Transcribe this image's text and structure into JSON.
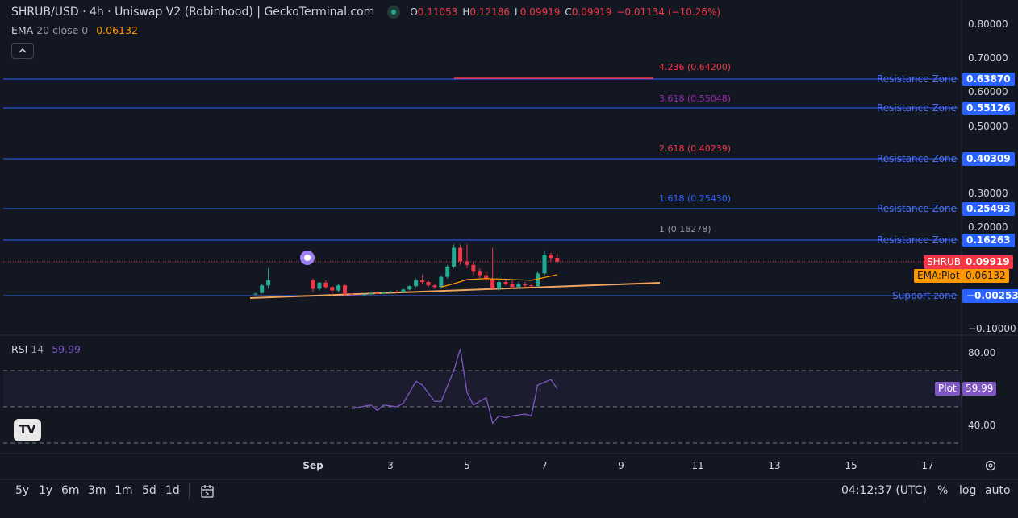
{
  "header": {
    "title": "SHRUB/USD · 4h · Uniswap V2 (Robinhood) | GeckoTerminal.com",
    "ohlc": {
      "o_label": "O",
      "o": "0.11053",
      "h_label": "H",
      "h": "0.12186",
      "l_label": "L",
      "l": "0.09919",
      "c_label": "C",
      "c": "0.09919"
    },
    "change": "−0.01134 (−10.26%)"
  },
  "ema": {
    "name": "EMA",
    "params": "20 close 0",
    "value": "0.06132"
  },
  "rsi": {
    "name": "RSI",
    "params": "14",
    "value": "59.99"
  },
  "colors": {
    "background": "#131722",
    "up": "#22ab94",
    "down": "#f23645",
    "zone": "#2962ff",
    "ema": "#ff9800",
    "trend": "#f0a35e",
    "rsi": "#7e57c2"
  },
  "price_scale": [
    "0.80000",
    "0.70000",
    "0.60000",
    "0.50000",
    "0.30000",
    "0.20000",
    "−0.10000"
  ],
  "rsi_scale": [
    "80.00",
    "40.00"
  ],
  "zones": [
    {
      "label": "Resistance Zone",
      "value": "0.63870"
    },
    {
      "label": "Resistance Zone",
      "value": "0.55126"
    },
    {
      "label": "Resistance Zone",
      "value": "0.40309"
    },
    {
      "label": "Resistance Zone",
      "value": "0.25493"
    },
    {
      "label": "Resistance Zone",
      "value": "0.16263"
    },
    {
      "label": "Support zone",
      "value": "−0.00253"
    }
  ],
  "fib_levels": [
    {
      "label": "4.236 (0.64200)",
      "color": "#f23645"
    },
    {
      "label": "3.618 (0.55048)",
      "color": "#9c27b0"
    },
    {
      "label": "2.618 (0.40239)",
      "color": "#f23645"
    },
    {
      "label": "1.618 (0.25430)",
      "color": "#2962ff"
    },
    {
      "label": "1 (0.16278)",
      "color": "#9598a1"
    }
  ],
  "price_tags": {
    "symbol_label": "SHRUB",
    "symbol_value": "0.09919",
    "ema_label": "EMA:Plot",
    "ema_value": "0.06132",
    "rsi_label": "Plot",
    "rsi_value": "59.99"
  },
  "date_axis": [
    "Sep",
    "3",
    "5",
    "7",
    "9",
    "11",
    "13",
    "15",
    "17"
  ],
  "timeframes": [
    "5y",
    "1y",
    "6m",
    "3m",
    "1m",
    "5d",
    "1d"
  ],
  "clock": "04:12:37 (UTC)",
  "scale_options": [
    "%",
    "log",
    "auto"
  ],
  "logo_text": "TV",
  "chart_data": {
    "type": "candlestick",
    "title": "SHRUB/USD · 4h · Uniswap V2 (Robinhood)",
    "candles": [
      {
        "t": "Aug 31 12:00",
        "o": 0.004,
        "h": 0.008,
        "l": 0.002,
        "c": 0.006
      },
      {
        "t": "Aug 31 16:00",
        "o": 0.008,
        "h": 0.035,
        "l": 0.006,
        "c": 0.03
      },
      {
        "t": "Aug 31 20:00",
        "o": 0.03,
        "h": 0.08,
        "l": 0.02,
        "c": 0.045
      },
      {
        "t": "Sep 1 00:00",
        "o": 0.045,
        "h": 0.05,
        "l": 0.01,
        "c": 0.02
      },
      {
        "t": "Sep 1 04:00",
        "o": 0.02,
        "h": 0.04,
        "l": 0.015,
        "c": 0.038
      },
      {
        "t": "Sep 1 08:00",
        "o": 0.038,
        "h": 0.045,
        "l": 0.02,
        "c": 0.025
      },
      {
        "t": "Sep 1 12:00",
        "o": 0.025,
        "h": 0.03,
        "l": 0.005,
        "c": 0.015
      },
      {
        "t": "Sep 1 16:00",
        "o": 0.015,
        "h": 0.035,
        "l": 0.01,
        "c": 0.03
      },
      {
        "t": "Sep 1 20:00",
        "o": 0.03,
        "h": 0.032,
        "l": 0.002,
        "c": 0.004
      },
      {
        "t": "Sep 2 00:00",
        "o": 0.004,
        "h": 0.006,
        "l": 0.0,
        "c": 0.003
      },
      {
        "t": "Sep 2 08:00",
        "o": 0.003,
        "h": 0.005,
        "l": 0.001,
        "c": 0.004
      },
      {
        "t": "Sep 2 12:00",
        "o": 0.004,
        "h": 0.008,
        "l": 0.002,
        "c": 0.007
      },
      {
        "t": "Sep 2 16:00",
        "o": 0.007,
        "h": 0.012,
        "l": 0.005,
        "c": 0.006
      },
      {
        "t": "Sep 2 20:00",
        "o": 0.006,
        "h": 0.01,
        "l": 0.004,
        "c": 0.009
      },
      {
        "t": "Sep 3 00:00",
        "o": 0.009,
        "h": 0.015,
        "l": 0.007,
        "c": 0.012
      },
      {
        "t": "Sep 3 04:00",
        "o": 0.012,
        "h": 0.016,
        "l": 0.008,
        "c": 0.01
      },
      {
        "t": "Sep 3 08:00",
        "o": 0.01,
        "h": 0.02,
        "l": 0.009,
        "c": 0.018
      },
      {
        "t": "Sep 3 12:00",
        "o": 0.018,
        "h": 0.03,
        "l": 0.015,
        "c": 0.028
      },
      {
        "t": "Sep 3 16:00",
        "o": 0.028,
        "h": 0.05,
        "l": 0.025,
        "c": 0.045
      },
      {
        "t": "Sep 3 20:00",
        "o": 0.045,
        "h": 0.06,
        "l": 0.035,
        "c": 0.04
      },
      {
        "t": "Sep 4 00:00",
        "o": 0.04,
        "h": 0.045,
        "l": 0.025,
        "c": 0.03
      },
      {
        "t": "Sep 4 04:00",
        "o": 0.03,
        "h": 0.035,
        "l": 0.02,
        "c": 0.025
      },
      {
        "t": "Sep 4 08:00",
        "o": 0.025,
        "h": 0.06,
        "l": 0.02,
        "c": 0.055
      },
      {
        "t": "Sep 4 12:00",
        "o": 0.055,
        "h": 0.09,
        "l": 0.05,
        "c": 0.085
      },
      {
        "t": "Sep 4 16:00",
        "o": 0.085,
        "h": 0.15,
        "l": 0.08,
        "c": 0.14
      },
      {
        "t": "Sep 4 20:00",
        "o": 0.14,
        "h": 0.15,
        "l": 0.09,
        "c": 0.1
      },
      {
        "t": "Sep 5 00:00",
        "o": 0.1,
        "h": 0.15,
        "l": 0.08,
        "c": 0.09
      },
      {
        "t": "Sep 5 04:00",
        "o": 0.09,
        "h": 0.1,
        "l": 0.06,
        "c": 0.07
      },
      {
        "t": "Sep 5 08:00",
        "o": 0.07,
        "h": 0.08,
        "l": 0.05,
        "c": 0.06
      },
      {
        "t": "Sep 5 12:00",
        "o": 0.06,
        "h": 0.07,
        "l": 0.04,
        "c": 0.05
      },
      {
        "t": "Sep 5 16:00",
        "o": 0.05,
        "h": 0.14,
        "l": 0.02,
        "c": 0.02
      },
      {
        "t": "Sep 5 20:00",
        "o": 0.02,
        "h": 0.06,
        "l": 0.015,
        "c": 0.04
      },
      {
        "t": "Sep 6 00:00",
        "o": 0.04,
        "h": 0.05,
        "l": 0.03,
        "c": 0.035
      },
      {
        "t": "Sep 6 04:00",
        "o": 0.035,
        "h": 0.045,
        "l": 0.02,
        "c": 0.025
      },
      {
        "t": "Sep 6 08:00",
        "o": 0.025,
        "h": 0.04,
        "l": 0.02,
        "c": 0.035
      },
      {
        "t": "Sep 6 12:00",
        "o": 0.035,
        "h": 0.04,
        "l": 0.025,
        "c": 0.03
      },
      {
        "t": "Sep 6 16:00",
        "o": 0.03,
        "h": 0.035,
        "l": 0.025,
        "c": 0.028
      },
      {
        "t": "Sep 6 20:00",
        "o": 0.028,
        "h": 0.07,
        "l": 0.025,
        "c": 0.065
      },
      {
        "t": "Sep 7 00:00",
        "o": 0.065,
        "h": 0.13,
        "l": 0.06,
        "c": 0.12
      },
      {
        "t": "Sep 7 04:00",
        "o": 0.12,
        "h": 0.125,
        "l": 0.1,
        "c": 0.11
      },
      {
        "t": "Sep 7 08:00",
        "o": 0.11053,
        "h": 0.12186,
        "l": 0.09919,
        "c": 0.09919
      }
    ],
    "ema_points": [
      {
        "t": "Sep 4 08:00",
        "v": 0.025
      },
      {
        "t": "Sep 4 16:00",
        "v": 0.035
      },
      {
        "t": "Sep 5 00:00",
        "v": 0.047
      },
      {
        "t": "Sep 5 12:00",
        "v": 0.05
      },
      {
        "t": "Sep 6 00:00",
        "v": 0.048
      },
      {
        "t": "Sep 6 16:00",
        "v": 0.045
      },
      {
        "t": "Sep 7 08:00",
        "v": 0.06132
      }
    ],
    "rsi_points": [
      {
        "t": "Sep 2 00:00",
        "v": 49
      },
      {
        "t": "Sep 2 12:00",
        "v": 51
      },
      {
        "t": "Sep 2 16:00",
        "v": 48
      },
      {
        "t": "Sep 2 20:00",
        "v": 51
      },
      {
        "t": "Sep 3 04:00",
        "v": 50
      },
      {
        "t": "Sep 3 08:00",
        "v": 52
      },
      {
        "t": "Sep 3 16:00",
        "v": 64
      },
      {
        "t": "Sep 3 20:00",
        "v": 62
      },
      {
        "t": "Sep 4 04:00",
        "v": 53
      },
      {
        "t": "Sep 4 08:00",
        "v": 53
      },
      {
        "t": "Sep 4 16:00",
        "v": 70
      },
      {
        "t": "Sep 4 20:00",
        "v": 82
      },
      {
        "t": "Sep 5 00:00",
        "v": 58
      },
      {
        "t": "Sep 5 04:00",
        "v": 51
      },
      {
        "t": "Sep 5 12:00",
        "v": 55
      },
      {
        "t": "Sep 5 16:00",
        "v": 41
      },
      {
        "t": "Sep 5 20:00",
        "v": 45
      },
      {
        "t": "Sep 6 00:00",
        "v": 44
      },
      {
        "t": "Sep 6 04:00",
        "v": 45
      },
      {
        "t": "Sep 6 12:00",
        "v": 46
      },
      {
        "t": "Sep 6 16:00",
        "v": 45
      },
      {
        "t": "Sep 6 20:00",
        "v": 62
      },
      {
        "t": "Sep 7 04:00",
        "v": 65
      },
      {
        "t": "Sep 7 08:00",
        "v": 59.99
      }
    ],
    "rsi_band": [
      50,
      70
    ],
    "ylim_price": [
      -0.1,
      0.8
    ],
    "grid": false
  }
}
